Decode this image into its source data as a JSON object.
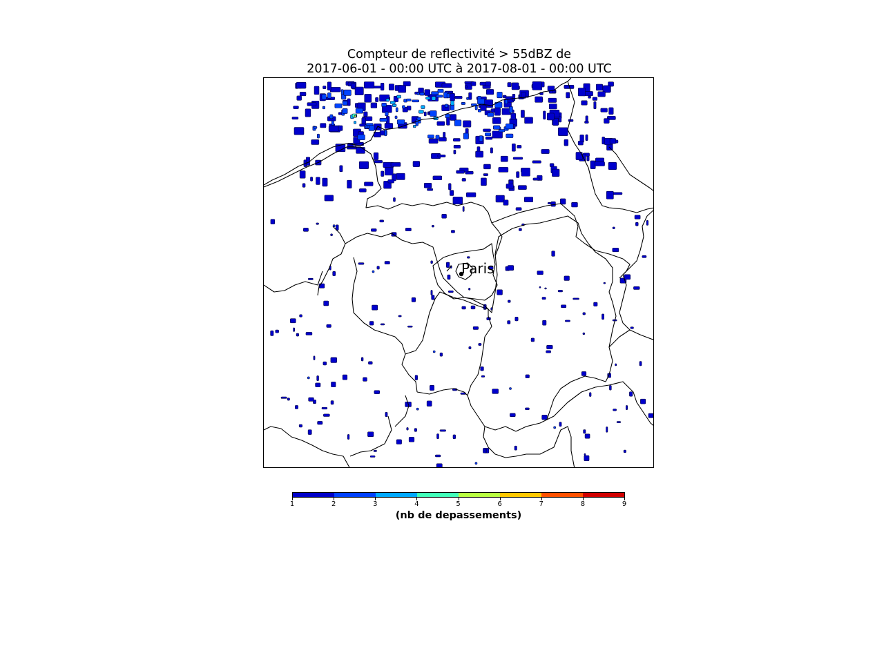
{
  "figure": {
    "title_line1": "Compteur de reflectivité > 55dBZ de",
    "title_line2": "2017-06-01 - 00:00 UTC à 2017-08-01 - 00:00 UTC"
  },
  "map": {
    "city_label": "Paris",
    "marker_icon": "city-dot-icon"
  },
  "colorbar": {
    "label": "(nb de depassements)",
    "ticks": [
      "1",
      "2",
      "3",
      "4",
      "5",
      "6",
      "7",
      "8",
      "9"
    ],
    "colors": [
      "#0000c8",
      "#0040ff",
      "#00a8ff",
      "#40ffb8",
      "#b8ff40",
      "#ffc800",
      "#ff5000",
      "#d00000"
    ]
  },
  "colors": {
    "level1": "#0000cc",
    "level2": "#0044ff",
    "level3": "#00b0ff",
    "level4": "#44ffbb",
    "level5": "#bbff44",
    "boundary": "#000000"
  }
}
